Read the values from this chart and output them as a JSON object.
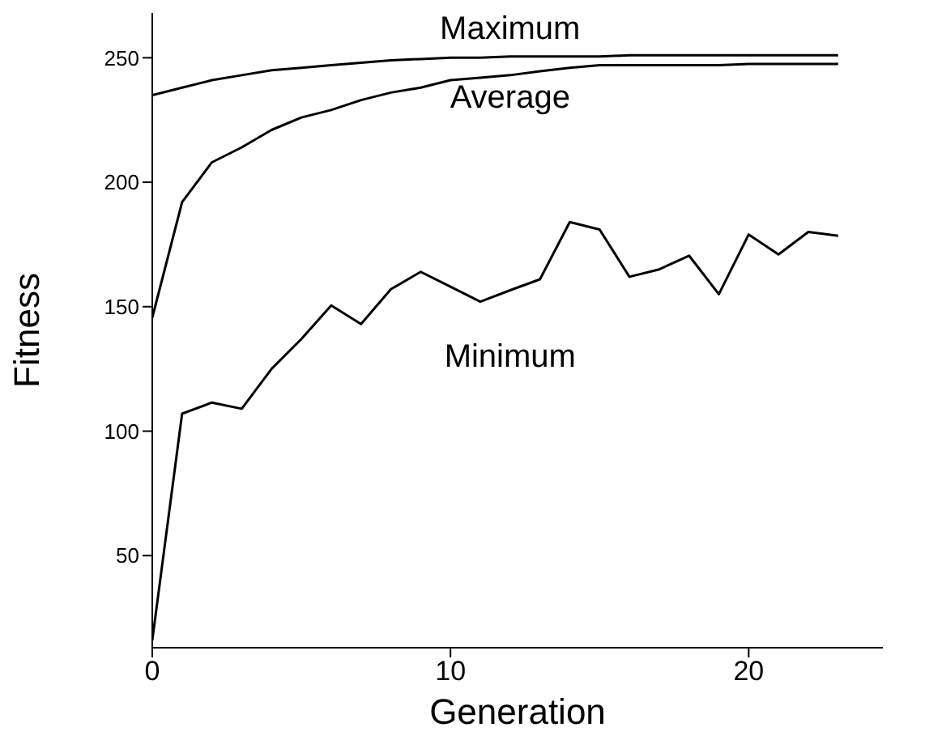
{
  "chart_data": {
    "type": "line",
    "xlabel": "Generation",
    "ylabel": "Fitness",
    "x": [
      0,
      1,
      2,
      3,
      4,
      5,
      6,
      7,
      8,
      9,
      10,
      11,
      12,
      13,
      14,
      15,
      16,
      17,
      18,
      19,
      20,
      21,
      22,
      23
    ],
    "series": [
      {
        "name": "Maximum",
        "color": "#000000",
        "values": [
          235,
          238,
          241,
          243,
          245,
          246,
          247,
          248,
          249,
          249.5,
          250,
          250,
          250.5,
          250.5,
          250.5,
          250.5,
          251,
          251,
          251,
          251,
          251,
          251,
          251,
          251
        ]
      },
      {
        "name": "Average",
        "color": "#000000",
        "values": [
          145.6,
          192,
          208,
          214,
          221,
          226,
          229,
          233,
          236,
          238,
          241,
          242,
          243,
          244.6,
          246,
          247,
          247,
          247,
          247,
          247,
          247.5,
          247.5,
          247.5,
          247.5
        ]
      },
      {
        "name": "Minimum",
        "color": "#000000",
        "values": [
          16,
          107,
          111.5,
          109,
          125,
          137,
          150.5,
          143,
          157,
          164,
          158,
          152,
          156.6,
          161,
          184,
          181,
          162,
          165,
          170.5,
          155,
          179,
          171,
          180,
          178.5
        ]
      }
    ],
    "xlim": [
      0,
      24.5
    ],
    "xticks": [
      0,
      10,
      20
    ],
    "ylim": [
      13,
      268
    ],
    "yticks": [
      50,
      100,
      150,
      200,
      250
    ],
    "marker": "none",
    "line_style": "solid"
  }
}
